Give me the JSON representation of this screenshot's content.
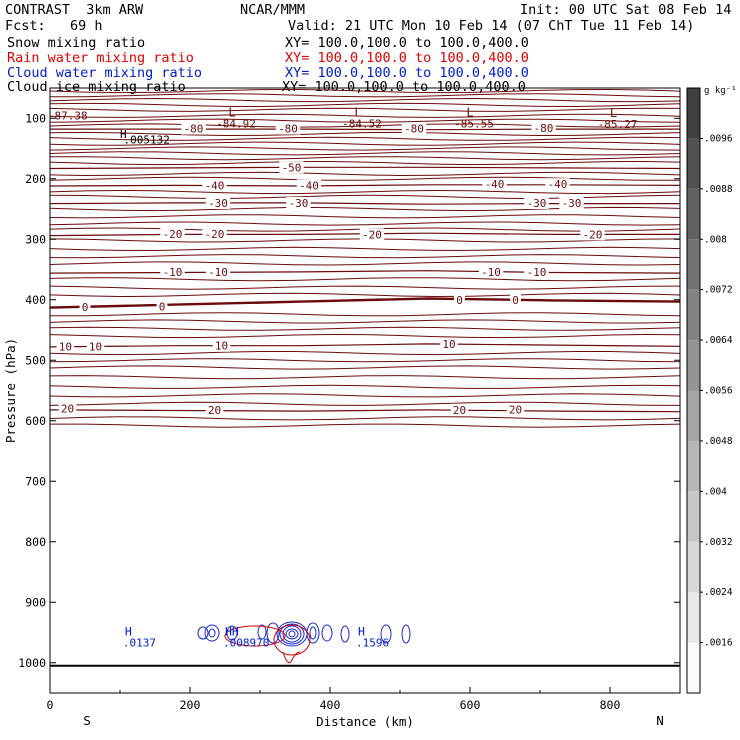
{
  "header": {
    "left_title": "CONTRAST  3km ARW",
    "center_title": "NCAR/MMM",
    "init": "Init: 00 UTC Sat 08 Feb 14",
    "fcst": "Fcst:   69 h",
    "valid": "Valid: 21 UTC Mon 10 Feb 14 (07 ChT Tue 11 Feb 14)"
  },
  "fields": [
    {
      "name": "Snow mixing ratio",
      "xy": "XY= 100.0,100.0 to 100.0,400.0",
      "color": "#000000"
    },
    {
      "name": "Rain water mixing ratio",
      "xy": "XY= 100.0,100.0 to 100.0,400.0",
      "color": "#e00000"
    },
    {
      "name": "Cloud water mixing ratio",
      "xy": "XY= 100.0,100.0 to 100.0,400.0",
      "color": "#0020d0"
    },
    {
      "name": "Cloud ice mixing ratio",
      "xy": "XY= 100.0,100.0 to 100.0,400.0",
      "color": "#000000"
    }
  ],
  "chart_data": {
    "type": "cross-section contour",
    "xlabel": "Distance (km)",
    "ylabel": "Pressure (hPa)",
    "xlim": [
      0,
      900
    ],
    "ylim": [
      1050,
      50
    ],
    "x_ticks": [
      "0",
      "200",
      "400",
      "600",
      "800"
    ],
    "x_tick_values": [
      0,
      200,
      400,
      600,
      800
    ],
    "y_ticks": [
      "100",
      "200",
      "300",
      "400",
      "500",
      "600",
      "700",
      "800",
      "900",
      "1000"
    ],
    "y_tick_values": [
      100,
      200,
      300,
      400,
      500,
      600,
      700,
      800,
      900,
      1000
    ],
    "x_end_labels": {
      "left": "S",
      "right": "N"
    },
    "surface_pressure": 1005,
    "contour_color": "#6b0a0a",
    "temperature_contours": [
      {
        "label": "-80",
        "pressures": [
          118,
          118,
          118,
          119,
          118,
          118
        ]
      },
      {
        "label": "-50",
        "pressures": [
          183,
          182,
          181,
          181,
          182,
          183
        ]
      },
      {
        "label": "-40",
        "pressures": [
          212,
          211,
          212,
          210,
          210,
          211
        ]
      },
      {
        "label": "-30",
        "pressures": [
          241,
          240,
          240,
          242,
          241,
          241
        ]
      },
      {
        "label": "-20",
        "pressures": [
          294,
          292,
          292,
          290,
          292,
          292
        ]
      },
      {
        "label": "-10",
        "pressures": [
          356,
          355,
          354,
          352,
          355,
          356
        ]
      },
      {
        "label": "0",
        "pressures": [
          413,
          408,
          403,
          398,
          401,
          403
        ]
      },
      {
        "label": "10",
        "pressures": [
          478,
          476,
          476,
          473,
          475,
          477
        ]
      },
      {
        "label": "20",
        "pressures": [
          582,
          583,
          584,
          582,
          584,
          585
        ]
      }
    ],
    "temperature_labels": [
      {
        "text": "-80",
        "x": 205,
        "p": 117
      },
      {
        "text": "-80",
        "x": 340,
        "p": 117
      },
      {
        "text": "-80",
        "x": 520,
        "p": 117
      },
      {
        "text": "-80",
        "x": 705,
        "p": 116
      },
      {
        "text": "-50",
        "x": 345,
        "p": 181
      },
      {
        "text": "-40",
        "x": 235,
        "p": 211
      },
      {
        "text": "-40",
        "x": 370,
        "p": 211
      },
      {
        "text": "-40",
        "x": 635,
        "p": 209
      },
      {
        "text": "-40",
        "x": 725,
        "p": 209
      },
      {
        "text": "-30",
        "x": 240,
        "p": 240
      },
      {
        "text": "-30",
        "x": 355,
        "p": 240
      },
      {
        "text": "-30",
        "x": 695,
        "p": 240
      },
      {
        "text": "-30",
        "x": 745,
        "p": 240
      },
      {
        "text": "-20",
        "x": 175,
        "p": 291
      },
      {
        "text": "-20",
        "x": 235,
        "p": 291
      },
      {
        "text": "-20",
        "x": 460,
        "p": 292
      },
      {
        "text": "-20",
        "x": 775,
        "p": 292
      },
      {
        "text": "-10",
        "x": 175,
        "p": 354
      },
      {
        "text": "-10",
        "x": 240,
        "p": 354
      },
      {
        "text": "-10",
        "x": 630,
        "p": 354
      },
      {
        "text": "-10",
        "x": 695,
        "p": 354
      },
      {
        "text": "0",
        "x": 50,
        "p": 412
      },
      {
        "text": "0",
        "x": 160,
        "p": 411
      },
      {
        "text": "0",
        "x": 585,
        "p": 400
      },
      {
        "text": "0",
        "x": 665,
        "p": 400
      },
      {
        "text": "10",
        "x": 22,
        "p": 477
      },
      {
        "text": "10",
        "x": 65,
        "p": 477
      },
      {
        "text": "10",
        "x": 245,
        "p": 476
      },
      {
        "text": "10",
        "x": 570,
        "p": 473
      },
      {
        "text": "20",
        "x": 25,
        "p": 580
      },
      {
        "text": "20",
        "x": 235,
        "p": 582
      },
      {
        "text": "20",
        "x": 585,
        "p": 582
      },
      {
        "text": "20",
        "x": 665,
        "p": 581
      }
    ],
    "lows": [
      {
        "letter": "L",
        "value": "-84.92",
        "x": 260,
        "p": 97
      },
      {
        "letter": "L",
        "value": "-84.52",
        "x": 440,
        "p": 97
      },
      {
        "letter": "L",
        "value": "-85.55",
        "x": 600,
        "p": 97
      },
      {
        "letter": "L",
        "value": "-85.27",
        "x": 805,
        "p": 98
      }
    ],
    "extra_labels": [
      {
        "text": "-87.38",
        "x": -3,
        "p": 102,
        "color": "#6b0a0a"
      },
      {
        "text": "H",
        "x": 100,
        "p": 133,
        "color": "#000000"
      },
      {
        "text": ".005132",
        "x": 105,
        "p": 142,
        "color": "#000000"
      }
    ],
    "cloud_water_maxima": [
      {
        "letter": "H",
        "value": ".0137",
        "x": 107,
        "p": 955
      },
      {
        "letter": "HH",
        "value": ".008970",
        "x": 250,
        "p": 955
      },
      {
        "letter": "H",
        "value": ".1596",
        "x": 440,
        "p": 955
      }
    ],
    "colorbar": {
      "unit": "g kg⁻¹",
      "labels": [
        ".0096",
        ".0088",
        ".008",
        ".0072",
        ".0064",
        ".0056",
        ".0048",
        ".004",
        ".0032",
        ".0024",
        ".0016"
      ],
      "label_values": [
        0.0096,
        0.0088,
        0.008,
        0.0072,
        0.0064,
        0.0056,
        0.0048,
        0.004,
        0.0032,
        0.0024,
        0.0016
      ],
      "range": [
        0.0008,
        0.0104
      ]
    }
  }
}
